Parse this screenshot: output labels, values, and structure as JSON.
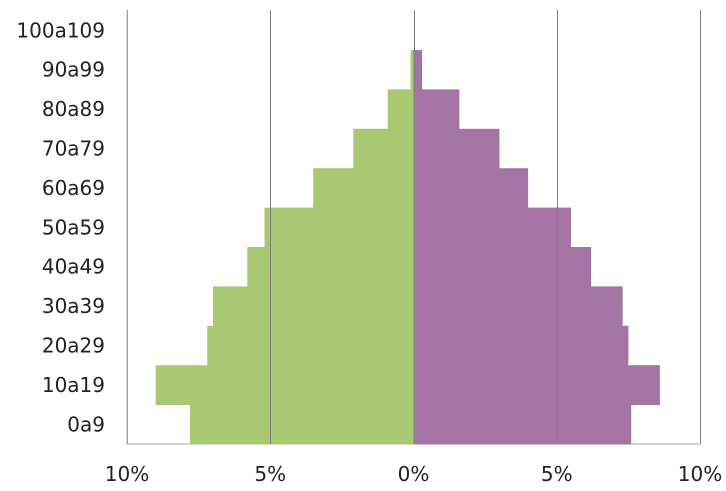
{
  "chart_data": {
    "type": "bar",
    "orientation": "horizontal",
    "subtype": "population-pyramid",
    "title": "",
    "xlabel": "",
    "ylabel": "",
    "categories": [
      "0a9",
      "10a19",
      "20a29",
      "30a39",
      "40a49",
      "50a59",
      "60a69",
      "70a79",
      "80a89",
      "90a99",
      "100a109"
    ],
    "series": [
      {
        "side": "left",
        "color": "#a8c871",
        "values": [
          7.8,
          9.0,
          7.2,
          7.0,
          5.8,
          5.2,
          3.5,
          2.1,
          0.9,
          0.1,
          0.0
        ]
      },
      {
        "side": "right",
        "color": "#a474a4",
        "values": [
          7.6,
          8.6,
          7.5,
          7.3,
          6.2,
          5.5,
          4.0,
          3.0,
          1.6,
          0.3,
          0.0
        ]
      }
    ],
    "xlim": [
      -10,
      10
    ],
    "x_ticks": [
      -10,
      -5,
      0,
      5,
      10
    ],
    "x_tick_labels": [
      "10%",
      "5%",
      "0%",
      "5%",
      "10%"
    ],
    "gridlines": "vertical",
    "gridline_color": "#7f7f7f",
    "legend": "none"
  }
}
